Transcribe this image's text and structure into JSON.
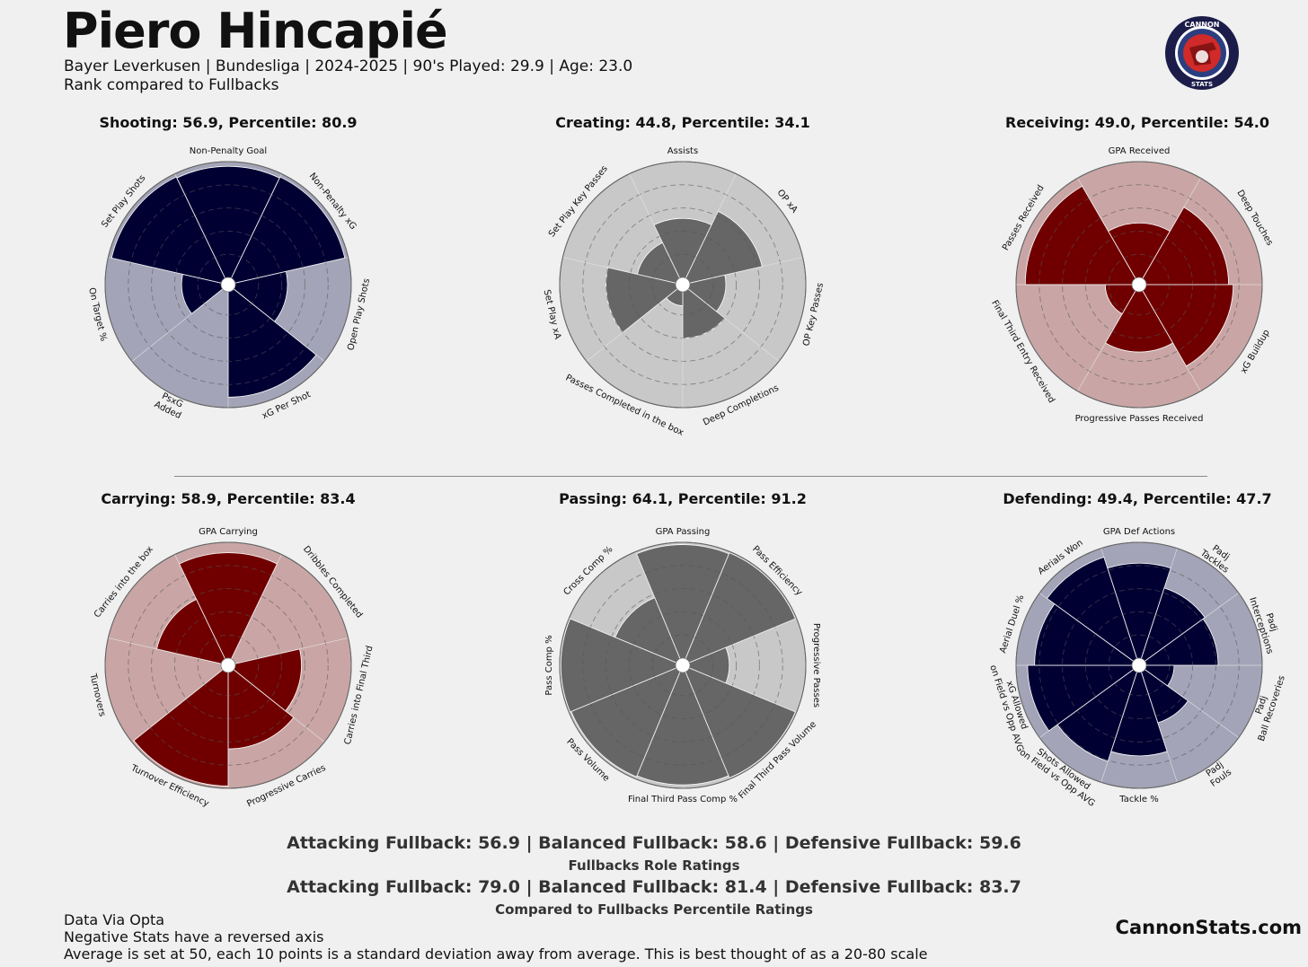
{
  "header": {
    "player": "Piero Hincapié",
    "info": "Bayer Leverkusen  | Bundesliga | 2024-2025 | 90's Played: 29.9 | Age: 23.0",
    "comparison": "Rank compared to Fullbacks"
  },
  "logo": {
    "top_text": "CANNON",
    "bottom_text": "STATS"
  },
  "chart_data": [
    {
      "type": "radar",
      "title": "Shooting: 56.9, Percentile: 80.9",
      "color": "#000033",
      "bg": "#a3a4b7",
      "categories": [
        "Non-Penalty Goal",
        "Non-Penalty xG",
        "Open Play Shots",
        "xG Per Shot",
        "PsxG\nAdded",
        "On Target %",
        "Set Play Shots"
      ],
      "values": [
        96,
        97,
        45,
        91,
        0,
        34,
        97
      ]
    },
    {
      "type": "radar",
      "title": "Creating: 44.8, Percentile: 34.1",
      "color": "#666666",
      "bg": "#c8c8c8",
      "categories": [
        "Assists",
        "OP xA",
        "OP Key Passes",
        "Deep Completions",
        "Passes Completed in the box",
        "Set Play xA",
        "Set Play Key Passes"
      ],
      "values": [
        51,
        64,
        31,
        40,
        12,
        60,
        34
      ]
    },
    {
      "type": "radar",
      "title": "Receiving: 49.0, Percentile: 54.0",
      "color": "#700000",
      "bg": "#c9a6a5",
      "categories": [
        "GPA Received",
        "Deep Touches",
        "xG Buildup",
        "Progressive Passes Received",
        "Final Third Entry Received",
        "Passes Received"
      ],
      "values": [
        47,
        71,
        75,
        52,
        23,
        92
      ]
    },
    {
      "type": "radar",
      "title": "Carrying: 58.9, Percentile: 83.4",
      "color": "#700000",
      "bg": "#c9a6a5",
      "categories": [
        "GPA Carrying",
        "Dribbles Completed",
        "Carries into Final Third",
        "Progressive Carries",
        "Turnover Efficiency",
        "Turnovers",
        "Carries into the box"
      ],
      "values": [
        91,
        0,
        57,
        66,
        98,
        0,
        57
      ]
    },
    {
      "type": "radar",
      "title": "Passing: 64.1, Percentile: 91.2",
      "color": "#666666",
      "bg": "#c8c8c8",
      "categories": [
        "GPA Passing",
        "Pass Efficiency",
        "Progressive Passes",
        "Final Third Pass Volume",
        "Final Third Pass Comp %",
        "Pass Volume",
        "Pass Comp %",
        "Cross Comp %"
      ],
      "values": [
        98,
        99,
        34,
        99,
        97,
        98,
        99,
        57
      ]
    },
    {
      "type": "radar",
      "title": "Defending: 49.4, Percentile: 47.7",
      "color": "#000033",
      "bg": "#a3a4b7",
      "categories": [
        "GPA Def Actions",
        "Padj\nTackles",
        "Padj\nInterceptions",
        "Padj\nBall Recoveries",
        "Padj\nFouls",
        "Tackle %",
        "Shots Allowed\non Field vs Opp AVG",
        "xG Allowed\non Field vs Opp AVG",
        "Aerial Duel %",
        "Aerials Won"
      ],
      "values": [
        82,
        64,
        62,
        24,
        46,
        72,
        81,
        90,
        84,
        92
      ]
    }
  ],
  "roles": {
    "ratings": "Attacking Fullback: 56.9 | Balanced Fullback: 58.6 | Defensive Fullback: 59.6",
    "ratings_label": "Fullbacks Role Ratings",
    "percentiles": "Attacking Fullback: 79.0 | Balanced Fullback: 81.4 | Defensive Fullback: 83.7",
    "percentiles_label": "Compared to Fullbacks Percentile Ratings"
  },
  "footer": {
    "line1": "Data Via Opta",
    "line2": "Negative Stats have a reversed axis",
    "line3": "Average is set at 50, each 10 points is a standard deviation away from average. This is best thought of as a 20-80 scale",
    "brand": "CannonStats.com"
  }
}
